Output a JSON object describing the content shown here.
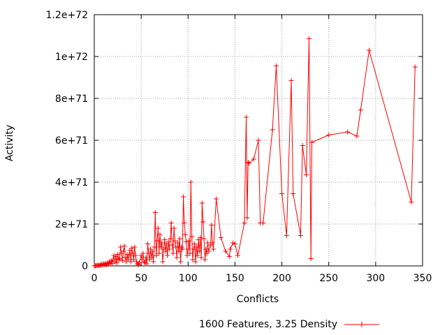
{
  "chart_data": {
    "type": "line",
    "title": "",
    "xlabel": "Conflicts",
    "ylabel": "Activity",
    "xlim": [
      0,
      350
    ],
    "ylim": [
      0,
      1.2e+72
    ],
    "x_ticks": [
      {
        "value": 0,
        "label": "0"
      },
      {
        "value": 50,
        "label": "50"
      },
      {
        "value": 100,
        "label": "100"
      },
      {
        "value": 150,
        "label": "150"
      },
      {
        "value": 200,
        "label": "200"
      },
      {
        "value": 250,
        "label": "250"
      },
      {
        "value": 300,
        "label": "300"
      },
      {
        "value": 350,
        "label": "350"
      }
    ],
    "y_ticks": [
      {
        "value": 0,
        "label": "0"
      },
      {
        "value": 2e+71,
        "label": "2e+71"
      },
      {
        "value": 4e+71,
        "label": "4e+71"
      },
      {
        "value": 6e+71,
        "label": "6e+71"
      },
      {
        "value": 8e+71,
        "label": "8e+71"
      },
      {
        "value": 1e+72,
        "label": "1e+72"
      },
      {
        "value": 1.2e+72,
        "label": "1.2e+72"
      }
    ],
    "grid": true,
    "legend_position": "bottom-center",
    "series": [
      {
        "name": "1600 Features, 3.25 Density",
        "color": "#ff0000",
        "marker": "plus",
        "points": [
          [
            0,
            0
          ],
          [
            1,
            1e+69
          ],
          [
            2,
            2e+69
          ],
          [
            3,
            3e+69
          ],
          [
            4,
            1e+69
          ],
          [
            5,
            4e+69
          ],
          [
            6,
            2e+69
          ],
          [
            7,
            5e+69
          ],
          [
            8,
            8e+69
          ],
          [
            9,
            3e+69
          ],
          [
            10,
            1e+70
          ],
          [
            11,
            6e+69
          ],
          [
            12,
            1.2e+70
          ],
          [
            13,
            4e+69
          ],
          [
            14,
            1.5e+70
          ],
          [
            15,
            8e+69
          ],
          [
            16,
            2e+70
          ],
          [
            17,
            1e+70
          ],
          [
            18,
            2.5e+70
          ],
          [
            19,
            1.2e+70
          ],
          [
            20,
            3e+70
          ],
          [
            21,
            5e+70
          ],
          [
            22,
            2e+70
          ],
          [
            23,
            4.5e+70
          ],
          [
            24,
            1.5e+70
          ],
          [
            25,
            5.5e+70
          ],
          [
            26,
            3e+70
          ],
          [
            27,
            3.5e+70
          ],
          [
            28,
            9e+70
          ],
          [
            29,
            6e+70
          ],
          [
            30,
            2.5e+70
          ],
          [
            31,
            7e+70
          ],
          [
            32,
            9.5e+70
          ],
          [
            33,
            4e+70
          ],
          [
            34,
            2e+70
          ],
          [
            35,
            5.5e+70
          ],
          [
            36,
            3e+70
          ],
          [
            37,
            5e+70
          ],
          [
            38,
            7.5e+70
          ],
          [
            39,
            2e+70
          ],
          [
            40,
            8.5e+70
          ],
          [
            41,
            6e+70
          ],
          [
            42,
            3e+70
          ],
          [
            43,
            9e+70
          ],
          [
            44,
            5e+70
          ],
          [
            45,
            2e+70
          ],
          [
            46,
            1e+70
          ],
          [
            47,
            5e+69
          ],
          [
            48,
            1.5e+70
          ],
          [
            50,
            5e+70
          ],
          [
            51,
            3e+70
          ],
          [
            52,
            6e+70
          ],
          [
            53,
            2e+70
          ],
          [
            54,
            1.5e+70
          ],
          [
            55,
            4e+70
          ],
          [
            56,
            1e+70
          ],
          [
            57,
            1.05e+71
          ],
          [
            58,
            6e+70
          ],
          [
            59,
            3e+70
          ],
          [
            60,
            8e+70
          ],
          [
            61,
            4e+70
          ],
          [
            62,
            7e+70
          ],
          [
            63,
            2e+70
          ],
          [
            64,
            9e+70
          ],
          [
            65,
            2.55e+71
          ],
          [
            66,
            5e+70
          ],
          [
            67,
            1.2e+71
          ],
          [
            68,
            1.8e+71
          ],
          [
            69,
            6e+70
          ],
          [
            70,
            1.5e+71
          ],
          [
            71,
            9e+70
          ],
          [
            72,
            1.1e+71
          ],
          [
            73,
            2e+70
          ],
          [
            74,
            8e+70
          ],
          [
            75,
            1.25e+71
          ],
          [
            76,
            7e+70
          ],
          [
            77,
            1.05e+71
          ],
          [
            78,
            5e+70
          ],
          [
            79,
            1.15e+71
          ],
          [
            80,
            8e+70
          ],
          [
            81,
            1.3e+71
          ],
          [
            82,
            2.05e+71
          ],
          [
            83,
            1e+71
          ],
          [
            84,
            6e+70
          ],
          [
            85,
            1.8e+71
          ],
          [
            86,
            1.2e+71
          ],
          [
            87,
            9e+70
          ],
          [
            88,
            4e+70
          ],
          [
            89,
            1.1e+71
          ],
          [
            90,
            7e+70
          ],
          [
            91,
            1.3e+71
          ],
          [
            92,
            2e+70
          ],
          [
            93,
            9e+70
          ],
          [
            94,
            8e+70
          ],
          [
            95,
            3.3e+71
          ],
          [
            96,
            2.05e+71
          ],
          [
            97,
            1.5e+71
          ],
          [
            98,
            1.15e+71
          ],
          [
            99,
            5e+70
          ],
          [
            100,
            8e+70
          ],
          [
            101,
            1.2e+71
          ],
          [
            102,
            6e+70
          ],
          [
            103,
            4e+71
          ],
          [
            104,
            1.4e+71
          ],
          [
            105,
            3e+70
          ],
          [
            106,
            8e+70
          ],
          [
            107,
            1.05e+71
          ],
          [
            108,
            2e+70
          ],
          [
            109,
            9e+70
          ],
          [
            110,
            5e+70
          ],
          [
            111,
            1.25e+71
          ],
          [
            112,
            7e+70
          ],
          [
            113,
            1.35e+71
          ],
          [
            114,
            4e+70
          ],
          [
            115,
            3e+71
          ],
          [
            116,
            2.1e+71
          ],
          [
            117,
            1.3e+71
          ],
          [
            118,
            3e+70
          ],
          [
            119,
            8e+70
          ],
          [
            120,
            6e+70
          ],
          [
            121,
            1.1e+71
          ],
          [
            122,
            7e+70
          ],
          [
            124,
            1e+71
          ],
          [
            125,
            1.95e+71
          ],
          [
            126,
            1.1e+71
          ],
          [
            127,
            8e+70
          ],
          [
            130,
            3.2e+71
          ],
          [
            135,
            1.35e+71
          ],
          [
            140,
            7e+70
          ],
          [
            144,
            4.5e+70
          ],
          [
            145,
            8e+70
          ],
          [
            148,
            1.1e+71
          ],
          [
            150,
            1.05e+71
          ],
          [
            153,
            5e+70
          ],
          [
            160,
            2.05e+71
          ],
          [
            162,
            7.1e+71
          ],
          [
            163,
            2.3e+71
          ],
          [
            164,
            4.95e+71
          ],
          [
            165,
            4.9e+71
          ],
          [
            170,
            5.1e+71
          ],
          [
            175,
            6e+71
          ],
          [
            177,
            2.05e+71
          ],
          [
            180,
            2.05e+71
          ],
          [
            190,
            6.5e+71
          ],
          [
            194,
            9.55e+71
          ],
          [
            200,
            3.45e+71
          ],
          [
            205,
            1.45e+71
          ],
          [
            210,
            8.85e+71
          ],
          [
            212,
            3.45e+71
          ],
          [
            220,
            1.45e+71
          ],
          [
            222,
            5.75e+71
          ],
          [
            226,
            4.35e+71
          ],
          [
            229,
            1.085e+72
          ],
          [
            231,
            3.5e+70
          ],
          [
            232,
            5.9e+71
          ],
          [
            250,
            6.25e+71
          ],
          [
            270,
            6.4e+71
          ],
          [
            280,
            6.2e+71
          ],
          [
            284,
            7.45e+71
          ],
          [
            293,
            1.03e+72
          ],
          [
            338,
            3.05e+71
          ],
          [
            342,
            9.5e+71
          ]
        ]
      }
    ]
  }
}
